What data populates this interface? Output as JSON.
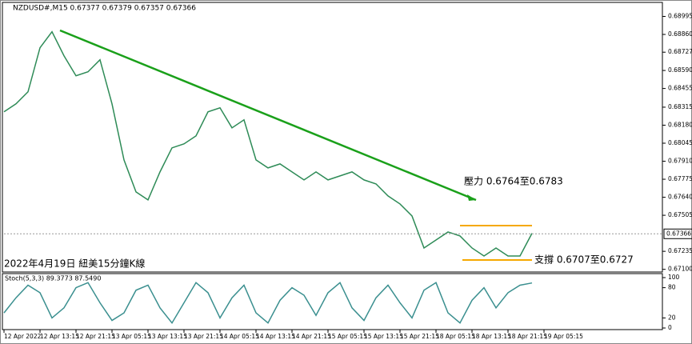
{
  "chart_data": [
    {
      "type": "line",
      "title": "NZDUSD#,M15 0.67377 0.67379 0.67357 0.67366",
      "categories": [
        "12 Apr 2022",
        null,
        null,
        "12 Apr 13:15",
        null,
        null,
        "12 Apr 21:15",
        null,
        null,
        "13 Apr 05:15",
        null,
        null,
        "13 Apr 13:15",
        null,
        null,
        "13 Apr 21:15",
        null,
        null,
        "14 Apr 05:15",
        null,
        null,
        "14 Apr 13:15",
        null,
        null,
        "14 Apr 21:15",
        null,
        null,
        "15 Apr 05:15",
        null,
        null,
        "15 Apr 13:15",
        null,
        null,
        "15 Apr 21:15",
        null,
        null,
        "18 Apr 05:15",
        null,
        null,
        "18 Apr 13:15",
        null,
        null,
        "18 Apr 21:15",
        null,
        null,
        "19 Apr 05:15"
      ],
      "series": [
        {
          "color": "#2e8b57",
          "values": [
            0.6828,
            0.6834,
            0.6843,
            0.6876,
            0.6888,
            0.687,
            0.6855,
            0.6858,
            0.6867,
            0.6834,
            0.6792,
            0.6768,
            0.6762,
            0.6783,
            0.6801,
            0.6804,
            0.681,
            0.6828,
            0.6831,
            0.6816,
            0.6822,
            0.6792,
            0.6786,
            0.6789,
            0.6783,
            0.6777,
            0.6783,
            0.6777,
            0.678,
            0.6783,
            0.6777,
            0.6774,
            0.6765,
            0.6759,
            0.675,
            0.6726,
            0.6732,
            0.6738,
            0.6735,
            0.6726,
            0.672,
            0.6726,
            0.672,
            0.672,
            0.6737,
            null
          ]
        }
      ],
      "ylim": [
        0.6708,
        0.6907
      ],
      "yticks": [
        0.68995,
        {
          "value": 0.6886,
          "label": "0.68860"
        },
        0.68727,
        {
          "value": 0.6859,
          "label": "0.68590"
        },
        0.68455,
        0.68315,
        {
          "value": 0.6818,
          "label": "0.68180"
        },
        0.68045,
        {
          "value": 0.6791,
          "label": "0.67910"
        },
        0.67775,
        {
          "value": 0.6764,
          "label": "0.67640"
        },
        0.67505,
        0.67235,
        {
          "value": 0.671,
          "label": "0.67100"
        }
      ],
      "last_price": 0.67366,
      "annotations": [
        "壓力 0.6764至0.6783",
        "支撐 0.6707至0.6727",
        "2022年4月19日 紐美15分鐘K線"
      ]
    },
    {
      "type": "line",
      "title": "Stoch(5,3,3) 89.3773 87.5490",
      "series": [
        {
          "color": "#3a8f8f",
          "values": [
            30,
            60,
            85,
            70,
            20,
            40,
            80,
            90,
            50,
            15,
            30,
            75,
            85,
            40,
            10,
            50,
            90,
            70,
            20,
            60,
            85,
            30,
            10,
            55,
            80,
            65,
            25,
            70,
            90,
            40,
            15,
            60,
            85,
            50,
            20,
            75,
            90,
            30,
            10,
            55,
            80,
            40,
            70,
            85,
            89.4,
            null
          ]
        }
      ],
      "ylim": [
        0,
        100
      ],
      "yticks": [
        100,
        80,
        20,
        0
      ]
    }
  ]
}
